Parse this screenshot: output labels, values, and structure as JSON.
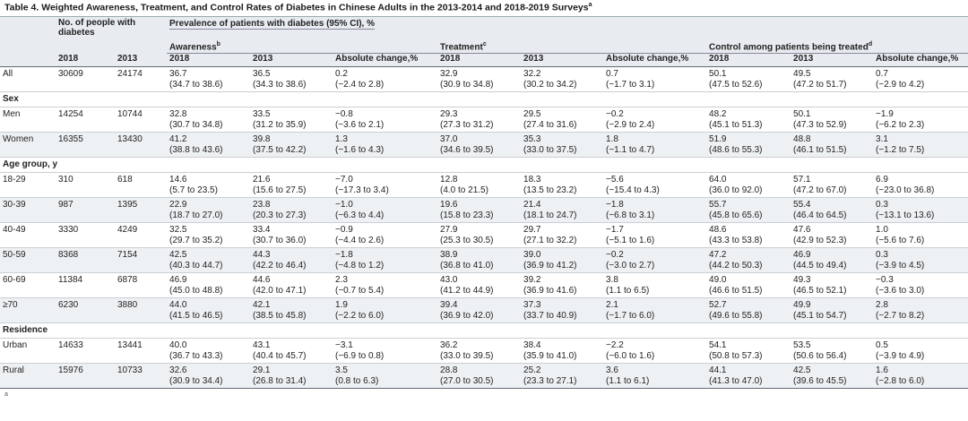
{
  "title": "Table 4. Weighted Awareness, Treatment, and Control Rates of Diabetes in Chinese Adults in the 2013-2014 and 2018-2019 Surveys",
  "title_sup": "a",
  "header": {
    "count_group": "No. of people with diabetes",
    "prevalence_group": "Prevalence of patients with diabetes (95% CI), %",
    "awareness": "Awareness",
    "awareness_sup": "b",
    "treatment": "Treatment",
    "treatment_sup": "c",
    "control": "Control among patients being treated",
    "control_sup": "d",
    "y2018": "2018",
    "y2013": "2013",
    "abs_change": "Absolute change,%"
  },
  "rows": [
    {
      "type": "data",
      "label": "All",
      "n2018": "30609",
      "n2013": "24174",
      "aw18": "36.7",
      "aw18ci": "(34.7 to 38.6)",
      "aw13": "36.5",
      "aw13ci": "(34.3 to 38.6)",
      "awc": "0.2",
      "awcci": "(−2.4 to 2.8)",
      "tr18": "32.9",
      "tr18ci": "(30.9 to 34.8)",
      "tr13": "32.2",
      "tr13ci": "(30.2 to 34.2)",
      "trc": "0.7",
      "trcci": "(−1.7 to 3.1)",
      "co18": "50.1",
      "co18ci": "(47.5 to 52.6)",
      "co13": "49.5",
      "co13ci": "(47.2 to 51.7)",
      "coc": "0.7",
      "cocci": "(−2.9 to 4.2)"
    },
    {
      "type": "group",
      "label": "Sex"
    },
    {
      "type": "data",
      "label": "Men",
      "n2018": "14254",
      "n2013": "10744",
      "aw18": "32.8",
      "aw18ci": "(30.7 to 34.8)",
      "aw13": "33.5",
      "aw13ci": "(31.2 to 35.9)",
      "awc": "−0.8",
      "awcci": "(−3.6 to 2.1)",
      "tr18": "29.3",
      "tr18ci": "(27.3 to 31.2)",
      "tr13": "29.5",
      "tr13ci": "(27.4 to 31.6)",
      "trc": "−0.2",
      "trcci": "(−2.9 to 2.4)",
      "co18": "48.2",
      "co18ci": "(45.1 to 51.3)",
      "co13": "50.1",
      "co13ci": "(47.3 to 52.9)",
      "coc": "−1.9",
      "cocci": "(−6.2 to 2.3)"
    },
    {
      "type": "data",
      "label": "Women",
      "n2018": "16355",
      "n2013": "13430",
      "aw18": "41.2",
      "aw18ci": "(38.8 to 43.6)",
      "aw13": "39.8",
      "aw13ci": "(37.5 to 42.2)",
      "awc": "1.3",
      "awcci": "(−1.6 to 4.3)",
      "tr18": "37.0",
      "tr18ci": "(34.6 to 39.5)",
      "tr13": "35.3",
      "tr13ci": "(33.0 to 37.5)",
      "trc": "1.8",
      "trcci": "(−1.1 to 4.7)",
      "co18": "51.9",
      "co18ci": "(48.6 to 55.3)",
      "co13": "48.8",
      "co13ci": "(46.1 to 51.5)",
      "coc": "3.1",
      "cocci": "(−1.2 to 7.5)"
    },
    {
      "type": "group",
      "label": "Age group, y"
    },
    {
      "type": "data",
      "label": "18-29",
      "n2018": "310",
      "n2013": "618",
      "aw18": "14.6",
      "aw18ci": "(5.7 to 23.5)",
      "aw13": "21.6",
      "aw13ci": "(15.6 to 27.5)",
      "awc": "−7.0",
      "awcci": "(−17.3 to 3.4)",
      "tr18": "12.8",
      "tr18ci": "(4.0 to 21.5)",
      "tr13": "18.3",
      "tr13ci": "(13.5 to 23.2)",
      "trc": "−5.6",
      "trcci": "(−15.4 to 4.3)",
      "co18": "64.0",
      "co18ci": "(36.0 to 92.0)",
      "co13": "57.1",
      "co13ci": "(47.2 to 67.0)",
      "coc": "6.9",
      "cocci": "(−23.0 to 36.8)"
    },
    {
      "type": "data",
      "label": "30-39",
      "n2018": "987",
      "n2013": "1395",
      "aw18": "22.9",
      "aw18ci": "(18.7 to 27.0)",
      "aw13": "23.8",
      "aw13ci": "(20.3 to 27.3)",
      "awc": "−1.0",
      "awcci": "(−6.3 to 4.4)",
      "tr18": "19.6",
      "tr18ci": "(15.8 to 23.3)",
      "tr13": "21.4",
      "tr13ci": "(18.1 to 24.7)",
      "trc": "−1.8",
      "trcci": "(−6.8 to 3.1)",
      "co18": "55.7",
      "co18ci": "(45.8 to 65.6)",
      "co13": "55.4",
      "co13ci": "(46.4 to 64.5)",
      "coc": "0.3",
      "cocci": "(−13.1 to 13.6)"
    },
    {
      "type": "data",
      "label": "40-49",
      "n2018": "3330",
      "n2013": "4249",
      "aw18": "32.5",
      "aw18ci": "(29.7 to 35.2)",
      "aw13": "33.4",
      "aw13ci": "(30.7 to 36.0)",
      "awc": "−0.9",
      "awcci": "(−4.4 to 2.6)",
      "tr18": "27.9",
      "tr18ci": "(25.3 to 30.5)",
      "tr13": "29.7",
      "tr13ci": "(27.1 to 32.2)",
      "trc": "−1.7",
      "trcci": "(−5.1 to 1.6)",
      "co18": "48.6",
      "co18ci": "(43.3 to 53.8)",
      "co13": "47.6",
      "co13ci": "(42.9 to 52.3)",
      "coc": "1.0",
      "cocci": "(−5.6 to 7.6)"
    },
    {
      "type": "data",
      "label": "50-59",
      "n2018": "8368",
      "n2013": "7154",
      "aw18": "42.5",
      "aw18ci": "(40.3 to 44.7)",
      "aw13": "44.3",
      "aw13ci": "(42.2 to 46.4)",
      "awc": "−1.8",
      "awcci": "(−4.8 to 1.2)",
      "tr18": "38.9",
      "tr18ci": "(36.8 to 41.0)",
      "tr13": "39.0",
      "tr13ci": "(36.9 to 41.2)",
      "trc": "−0.2",
      "trcci": "(−3.0 to 2.7)",
      "co18": "47.2",
      "co18ci": "(44.2 to 50.3)",
      "co13": "46.9",
      "co13ci": "(44.5 to 49.4)",
      "coc": "0.3",
      "cocci": "(−3.9 to 4.5)"
    },
    {
      "type": "data",
      "label": "60-69",
      "n2018": "11384",
      "n2013": "6878",
      "aw18": "46.9",
      "aw18ci": "(45.0 to 48.8)",
      "aw13": "44.6",
      "aw13ci": "(42.0 to 47.1)",
      "awc": "2.3",
      "awcci": "(−0.7 to 5.4)",
      "tr18": "43.0",
      "tr18ci": "(41.2 to 44.9)",
      "tr13": "39.2",
      "tr13ci": "(36.9 to 41.6)",
      "trc": "3.8",
      "trcci": "(1.1 to 6.5)",
      "co18": "49.0",
      "co18ci": "(46.6 to 51.5)",
      "co13": "49.3",
      "co13ci": "(46.5 to 52.1)",
      "coc": "−0.3",
      "cocci": "(−3.6 to 3.0)"
    },
    {
      "type": "data",
      "label": "≥70",
      "n2018": "6230",
      "n2013": "3880",
      "aw18": "44.0",
      "aw18ci": "(41.5 to 46.5)",
      "aw13": "42.1",
      "aw13ci": "(38.5 to 45.8)",
      "awc": "1.9",
      "awcci": "(−2.2 to 6.0)",
      "tr18": "39.4",
      "tr18ci": "(36.9 to 42.0)",
      "tr13": "37.3",
      "tr13ci": "(33.7 to 40.9)",
      "trc": "2.1",
      "trcci": "(−1.7 to 6.0)",
      "co18": "52.7",
      "co18ci": "(49.6 to 55.8)",
      "co13": "49.9",
      "co13ci": "(45.1 to 54.7)",
      "coc": "2.8",
      "cocci": "(−2.7 to 8.2)"
    },
    {
      "type": "group",
      "label": "Residence"
    },
    {
      "type": "data",
      "label": "Urban",
      "n2018": "14633",
      "n2013": "13441",
      "aw18": "40.0",
      "aw18ci": "(36.7 to 43.3)",
      "aw13": "43.1",
      "aw13ci": "(40.4 to 45.7)",
      "awc": "−3.1",
      "awcci": "(−6.9 to 0.8)",
      "tr18": "36.2",
      "tr18ci": "(33.0 to 39.5)",
      "tr13": "38.4",
      "tr13ci": "(35.9 to 41.0)",
      "trc": "−2.2",
      "trcci": "(−6.0 to 1.6)",
      "co18": "54.1",
      "co18ci": "(50.8 to 57.3)",
      "co13": "53.5",
      "co13ci": "(50.6 to 56.4)",
      "coc": "0.5",
      "cocci": "(−3.9 to 4.9)"
    },
    {
      "type": "data",
      "label": "Rural",
      "n2018": "15976",
      "n2013": "10733",
      "aw18": "32.6",
      "aw18ci": "(30.9 to 34.4)",
      "aw13": "29.1",
      "aw13ci": "(26.8 to 31.4)",
      "awc": "3.5",
      "awcci": "(0.8 to 6.3)",
      "tr18": "28.8",
      "tr18ci": "(27.0 to 30.5)",
      "tr13": "25.2",
      "tr13ci": "(23.3 to 27.1)",
      "trc": "3.6",
      "trcci": "(1.1 to 6.1)",
      "co18": "44.1",
      "co18ci": "(41.3 to 47.0)",
      "co13": "42.5",
      "co13ci": "(39.6 to 45.5)",
      "coc": "1.6",
      "cocci": "(−2.8 to 6.0)"
    }
  ],
  "footnote_fragment": "a"
}
